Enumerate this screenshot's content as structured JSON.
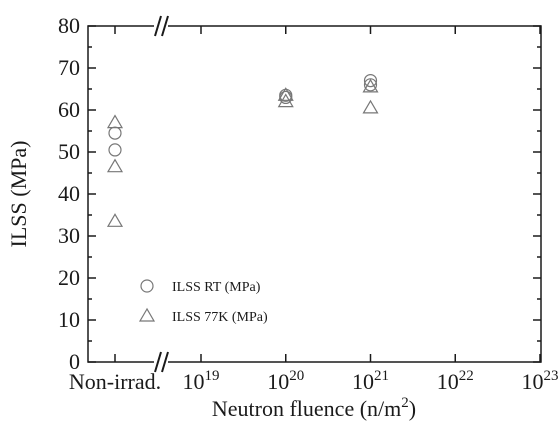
{
  "chart_data": {
    "type": "scatter",
    "title": "",
    "xlabel": "Neutron fluence (n/m",
    "xlabel_sup": "2",
    "xlabel_close": ")",
    "ylabel": "ILSS (MPa)",
    "x_scale": "log",
    "x_break": true,
    "ylim": [
      0,
      80
    ],
    "yticks": [
      "0",
      "10",
      "20",
      "30",
      "40",
      "50",
      "60",
      "70",
      "80"
    ],
    "xticks": [
      {
        "base": "Non-irrad.",
        "exp": ""
      },
      {
        "base": "10",
        "exp": "19"
      },
      {
        "base": "10",
        "exp": "20"
      },
      {
        "base": "10",
        "exp": "21"
      },
      {
        "base": "10",
        "exp": "22"
      },
      {
        "base": "10",
        "exp": "23"
      }
    ],
    "legend_position": "bottom-left",
    "series": [
      {
        "name": "ILSS RT (MPa)",
        "marker": "circle",
        "color": "#777777",
        "points": [
          {
            "x": "Non-irrad.",
            "y": 54.5
          },
          {
            "x": "Non-irrad.",
            "y": 50.5
          },
          {
            "x": "1e20",
            "y": 63.5
          },
          {
            "x": "1e20",
            "y": 63.0
          },
          {
            "x": "1e21",
            "y": 67.0
          },
          {
            "x": "1e21",
            "y": 66.0
          }
        ]
      },
      {
        "name": "ILSS 77K (MPa)",
        "marker": "triangle",
        "color": "#777777",
        "points": [
          {
            "x": "Non-irrad.",
            "y": 57.0
          },
          {
            "x": "Non-irrad.",
            "y": 46.5
          },
          {
            "x": "Non-irrad.",
            "y": 33.5
          },
          {
            "x": "1e20",
            "y": 63.5
          },
          {
            "x": "1e20",
            "y": 62.0
          },
          {
            "x": "1e21",
            "y": 65.5
          },
          {
            "x": "1e21",
            "y": 60.5
          }
        ]
      }
    ]
  }
}
